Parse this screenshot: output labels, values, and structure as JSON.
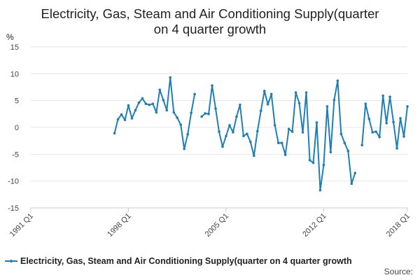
{
  "chart_data": {
    "type": "line",
    "title": "Electricity, Gas, Steam and Air Conditioning Supply(quarter on 4 quarter growth",
    "title_lines": [
      "Electricity, Gas, Steam and Air Conditioning Supply(quarter",
      "on 4 quarter growth"
    ],
    "ylabel": "%",
    "ylim": [
      -15,
      15
    ],
    "yticks": [
      15,
      10,
      5,
      0,
      -5,
      -10,
      -15
    ],
    "x_range": [
      "1991 Q1",
      "2018 Q1"
    ],
    "x_ticks": [
      "1991 Q1",
      "1998 Q1",
      "2005 Q1",
      "2012 Q1",
      "2018 Q1"
    ],
    "grid": true,
    "legend_position": "bottom",
    "source_label": "Source:",
    "series": [
      {
        "name": "Electricity, Gas, Steam and Air Conditioning Supply(quarter on 4 quarter growth",
        "color": "#1f7fb4",
        "start": "1997 Q1",
        "values": [
          -1.1,
          1.5,
          2.4,
          1.4,
          4.1,
          1.7,
          3.2,
          4.6,
          5.4,
          4.4,
          4.2,
          4.4,
          2.8,
          7.0,
          5.1,
          3.2,
          9.3,
          2.8,
          1.8,
          0.5,
          -4.0,
          -1.3,
          2.7,
          6.2,
          null,
          2.0,
          2.6,
          2.5,
          7.8,
          3.5,
          -0.8,
          -3.6,
          -1.6,
          0.4,
          -0.9,
          2.0,
          4.2,
          -1.6,
          -1.2,
          -2.7,
          -5.3,
          -0.7,
          3.1,
          6.8,
          4.3,
          6.2,
          0.4,
          -2.9,
          -2.9,
          -5.1,
          -0.3,
          -0.8,
          6.5,
          4.5,
          -0.9,
          6.5,
          -6.1,
          -6.6,
          0.9,
          -11.7,
          -7.0,
          3.9,
          -4.6,
          5.1,
          8.7,
          -1.2,
          -2.9,
          -4.4,
          -10.5,
          -8.5,
          null,
          -3.3,
          4.4,
          1.6,
          -0.9,
          -0.8,
          -1.8,
          5.9,
          0.8,
          5.7,
          1.0,
          -3.9,
          1.7,
          -1.7,
          3.9
        ]
      }
    ]
  }
}
